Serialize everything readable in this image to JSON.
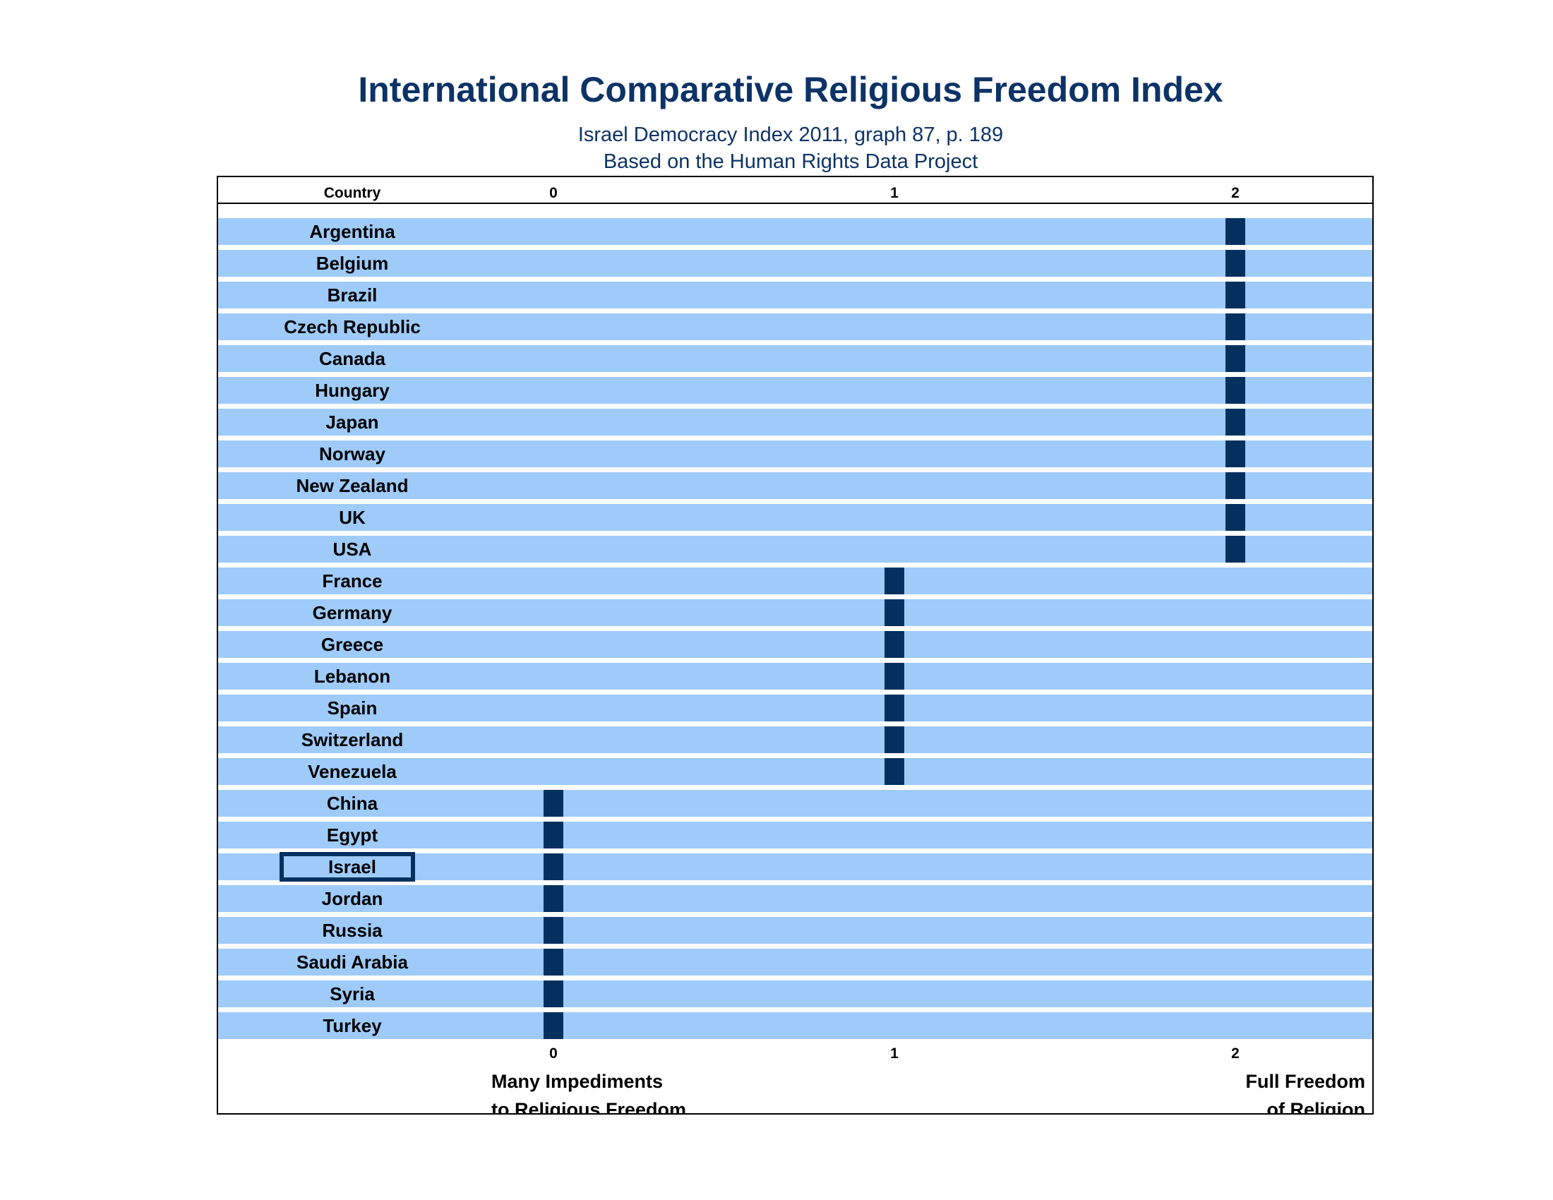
{
  "title": "International Comparative Religious Freedom Index",
  "subtitle_1": "Israel Democracy Index 2011, graph 87, p. 189",
  "subtitle_2": "Based on the Human Rights Data Project",
  "colors": {
    "title": "#0d3366",
    "row_background": "#9ecbfa",
    "marker": "#03305e",
    "highlight_border": "#03305e"
  },
  "chart_data": {
    "type": "bar",
    "column_header": "Country",
    "xlim": [
      0,
      2
    ],
    "x_ticks": [
      0,
      1,
      2
    ],
    "x_tick_labels": [
      "0",
      "1",
      "2"
    ],
    "left_axis_note": [
      "Many Impediments",
      "to Religious Freedom"
    ],
    "right_axis_note": [
      "Full Freedom",
      "of Religion"
    ],
    "highlighted_category": "Israel",
    "categories": [
      "Argentina",
      "Belgium",
      "Brazil",
      "Czech Republic",
      "Canada",
      "Hungary",
      "Japan",
      "Norway",
      "New Zealand",
      "UK",
      "USA",
      "France",
      "Germany",
      "Greece",
      "Lebanon",
      "Spain",
      "Switzerland",
      "Venezuela",
      "China",
      "Egypt",
      "Israel",
      "Jordan",
      "Russia",
      "Saudi Arabia",
      "Syria",
      "Turkey"
    ],
    "values": [
      2,
      2,
      2,
      2,
      2,
      2,
      2,
      2,
      2,
      2,
      2,
      1,
      1,
      1,
      1,
      1,
      1,
      1,
      0,
      0,
      0,
      0,
      0,
      0,
      0,
      0
    ]
  }
}
